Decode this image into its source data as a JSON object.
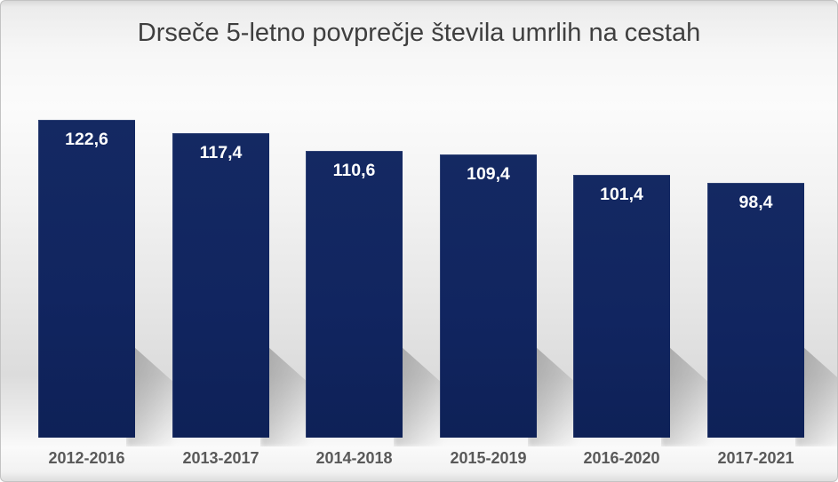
{
  "chart_data": {
    "type": "bar",
    "title": "Drseče 5-letno povprečje števila umrlih na cestah",
    "categories": [
      "2012-2016",
      "2013-2017",
      "2014-2018",
      "2015-2019",
      "2016-2020",
      "2017-2021"
    ],
    "values": [
      122.6,
      117.4,
      110.6,
      109.4,
      101.4,
      98.4
    ],
    "value_labels": [
      "122,6",
      "117,4",
      "110,6",
      "109,4",
      "101,4",
      "98,4"
    ],
    "xlabel": "",
    "ylabel": "",
    "ylim": [
      0,
      135
    ],
    "grid": false,
    "legend": false,
    "axes_hidden": true,
    "value_labels_position": "inside-top",
    "colors": {
      "bar": "#112560",
      "value_label": "#FFFFFF",
      "category_label": "#595959",
      "title": "#3F3F3F",
      "background_top": "#ECECEC",
      "background_mid": "#F3F3F3",
      "background_shadow": "#9E9E9E"
    }
  }
}
